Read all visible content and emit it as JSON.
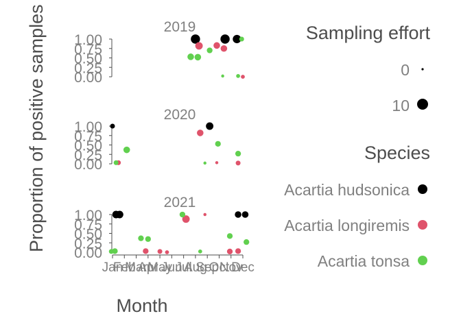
{
  "chart_data": {
    "type": "scatter",
    "xlabel": "Month",
    "ylabel": "Proportion of positive samples",
    "y_ticks": [
      "0.00",
      "0.25",
      "0.50",
      "0.75",
      "1.00"
    ],
    "ylim": [
      0,
      1
    ],
    "x_ticks": [
      "Jan",
      "Feb",
      "Mar",
      "Apr",
      "May",
      "Jun",
      "Jul",
      "Aug",
      "Sep",
      "Oct",
      "Nov",
      "Dec"
    ],
    "xlim": [
      1,
      12
    ],
    "legends": {
      "size": {
        "title": "Sampling effort",
        "entries": [
          {
            "label": "0",
            "value": 0
          },
          {
            "label": "10",
            "value": 10
          }
        ]
      },
      "color": {
        "title": "Species",
        "entries": [
          {
            "label": "Acartia hudsonica",
            "color": "#000000"
          },
          {
            "label": "Acartia longiremis",
            "color": "#DF536B"
          },
          {
            "label": "Acartia tonsa",
            "color": "#61D04F"
          }
        ]
      }
    },
    "panels": [
      {
        "title": "2019",
        "points": [
          {
            "species": "Acartia hudsonica",
            "x": 8,
            "y": 1.0,
            "effort": 8
          },
          {
            "species": "Acartia hudsonica",
            "x": 10.5,
            "y": 1.0,
            "effort": 8
          },
          {
            "species": "Acartia hudsonica",
            "x": 11.5,
            "y": 1.0,
            "effort": 7
          },
          {
            "species": "Acartia longiremis",
            "x": 8.3,
            "y": 0.82,
            "effort": 6
          },
          {
            "species": "Acartia longiremis",
            "x": 9.8,
            "y": 0.83,
            "effort": 5
          },
          {
            "species": "Acartia longiremis",
            "x": 10.4,
            "y": 0.75,
            "effort": 5
          },
          {
            "species": "Acartia longiremis",
            "x": 12,
            "y": 0.0,
            "effort": 2
          },
          {
            "species": "Acartia tonsa",
            "x": 7.6,
            "y": 0.53,
            "effort": 5
          },
          {
            "species": "Acartia tonsa",
            "x": 8.2,
            "y": 0.52,
            "effort": 5
          },
          {
            "species": "Acartia tonsa",
            "x": 9.2,
            "y": 0.7,
            "effort": 4
          },
          {
            "species": "Acartia tonsa",
            "x": 10.3,
            "y": 0.02,
            "effort": 1
          },
          {
            "species": "Acartia tonsa",
            "x": 11.6,
            "y": 0.02,
            "effort": 2
          },
          {
            "species": "Acartia tonsa",
            "x": 11.9,
            "y": 1.0,
            "effort": 3
          }
        ]
      },
      {
        "title": "2020",
        "points": [
          {
            "species": "Acartia hudsonica",
            "x": 1,
            "y": 1.0,
            "effort": 3
          },
          {
            "species": "Acartia hudsonica",
            "x": 9.2,
            "y": 1.0,
            "effort": 6
          },
          {
            "species": "Acartia longiremis",
            "x": 1.5,
            "y": 0.03,
            "effort": 3
          },
          {
            "species": "Acartia longiremis",
            "x": 8.4,
            "y": 0.82,
            "effort": 5
          },
          {
            "species": "Acartia longiremis",
            "x": 9.8,
            "y": 0.03,
            "effort": 1
          },
          {
            "species": "Acartia longiremis",
            "x": 11.6,
            "y": 0.02,
            "effort": 3
          },
          {
            "species": "Acartia tonsa",
            "x": 1.3,
            "y": 0.03,
            "effort": 3
          },
          {
            "species": "Acartia tonsa",
            "x": 2.2,
            "y": 0.37,
            "effort": 5
          },
          {
            "species": "Acartia tonsa",
            "x": 8.8,
            "y": 0.02,
            "effort": 1
          },
          {
            "species": "Acartia tonsa",
            "x": 9.9,
            "y": 0.53,
            "effort": 4
          },
          {
            "species": "Acartia tonsa",
            "x": 11.6,
            "y": 0.27,
            "effort": 4
          }
        ]
      },
      {
        "title": "2021",
        "points": [
          {
            "species": "Acartia hudsonica",
            "x": 1.3,
            "y": 1.0,
            "effort": 6
          },
          {
            "species": "Acartia hudsonica",
            "x": 1.6,
            "y": 1.0,
            "effort": 6
          },
          {
            "species": "Acartia hudsonica",
            "x": 11.6,
            "y": 1.0,
            "effort": 5
          },
          {
            "species": "Acartia hudsonica",
            "x": 12.2,
            "y": 1.0,
            "effort": 5
          },
          {
            "species": "Acartia longiremis",
            "x": 3.8,
            "y": 0.03,
            "effort": 4
          },
          {
            "species": "Acartia longiremis",
            "x": 5.0,
            "y": 0.02,
            "effort": 3
          },
          {
            "species": "Acartia longiremis",
            "x": 5.6,
            "y": 0.0,
            "effort": 2
          },
          {
            "species": "Acartia longiremis",
            "x": 7.2,
            "y": 0.88,
            "effort": 6
          },
          {
            "species": "Acartia longiremis",
            "x": 8.8,
            "y": 1.0,
            "effort": 1
          },
          {
            "species": "Acartia longiremis",
            "x": 10.9,
            "y": 0.02,
            "effort": 4
          },
          {
            "species": "Acartia longiremis",
            "x": 11.6,
            "y": 0.03,
            "effort": 4
          },
          {
            "species": "Acartia tonsa",
            "x": 0.9,
            "y": 0.02,
            "effort": 3
          },
          {
            "species": "Acartia tonsa",
            "x": 1.2,
            "y": 0.03,
            "effort": 4
          },
          {
            "species": "Acartia tonsa",
            "x": 3.4,
            "y": 0.37,
            "effort": 4
          },
          {
            "species": "Acartia tonsa",
            "x": 4.0,
            "y": 0.35,
            "effort": 4
          },
          {
            "species": "Acartia tonsa",
            "x": 6.9,
            "y": 1.0,
            "effort": 4
          },
          {
            "species": "Acartia tonsa",
            "x": 8.4,
            "y": 0.02,
            "effort": 2
          },
          {
            "species": "Acartia tonsa",
            "x": 10.9,
            "y": 0.43,
            "effort": 4
          },
          {
            "species": "Acartia tonsa",
            "x": 12.3,
            "y": 0.27,
            "effort": 4
          }
        ]
      }
    ]
  }
}
